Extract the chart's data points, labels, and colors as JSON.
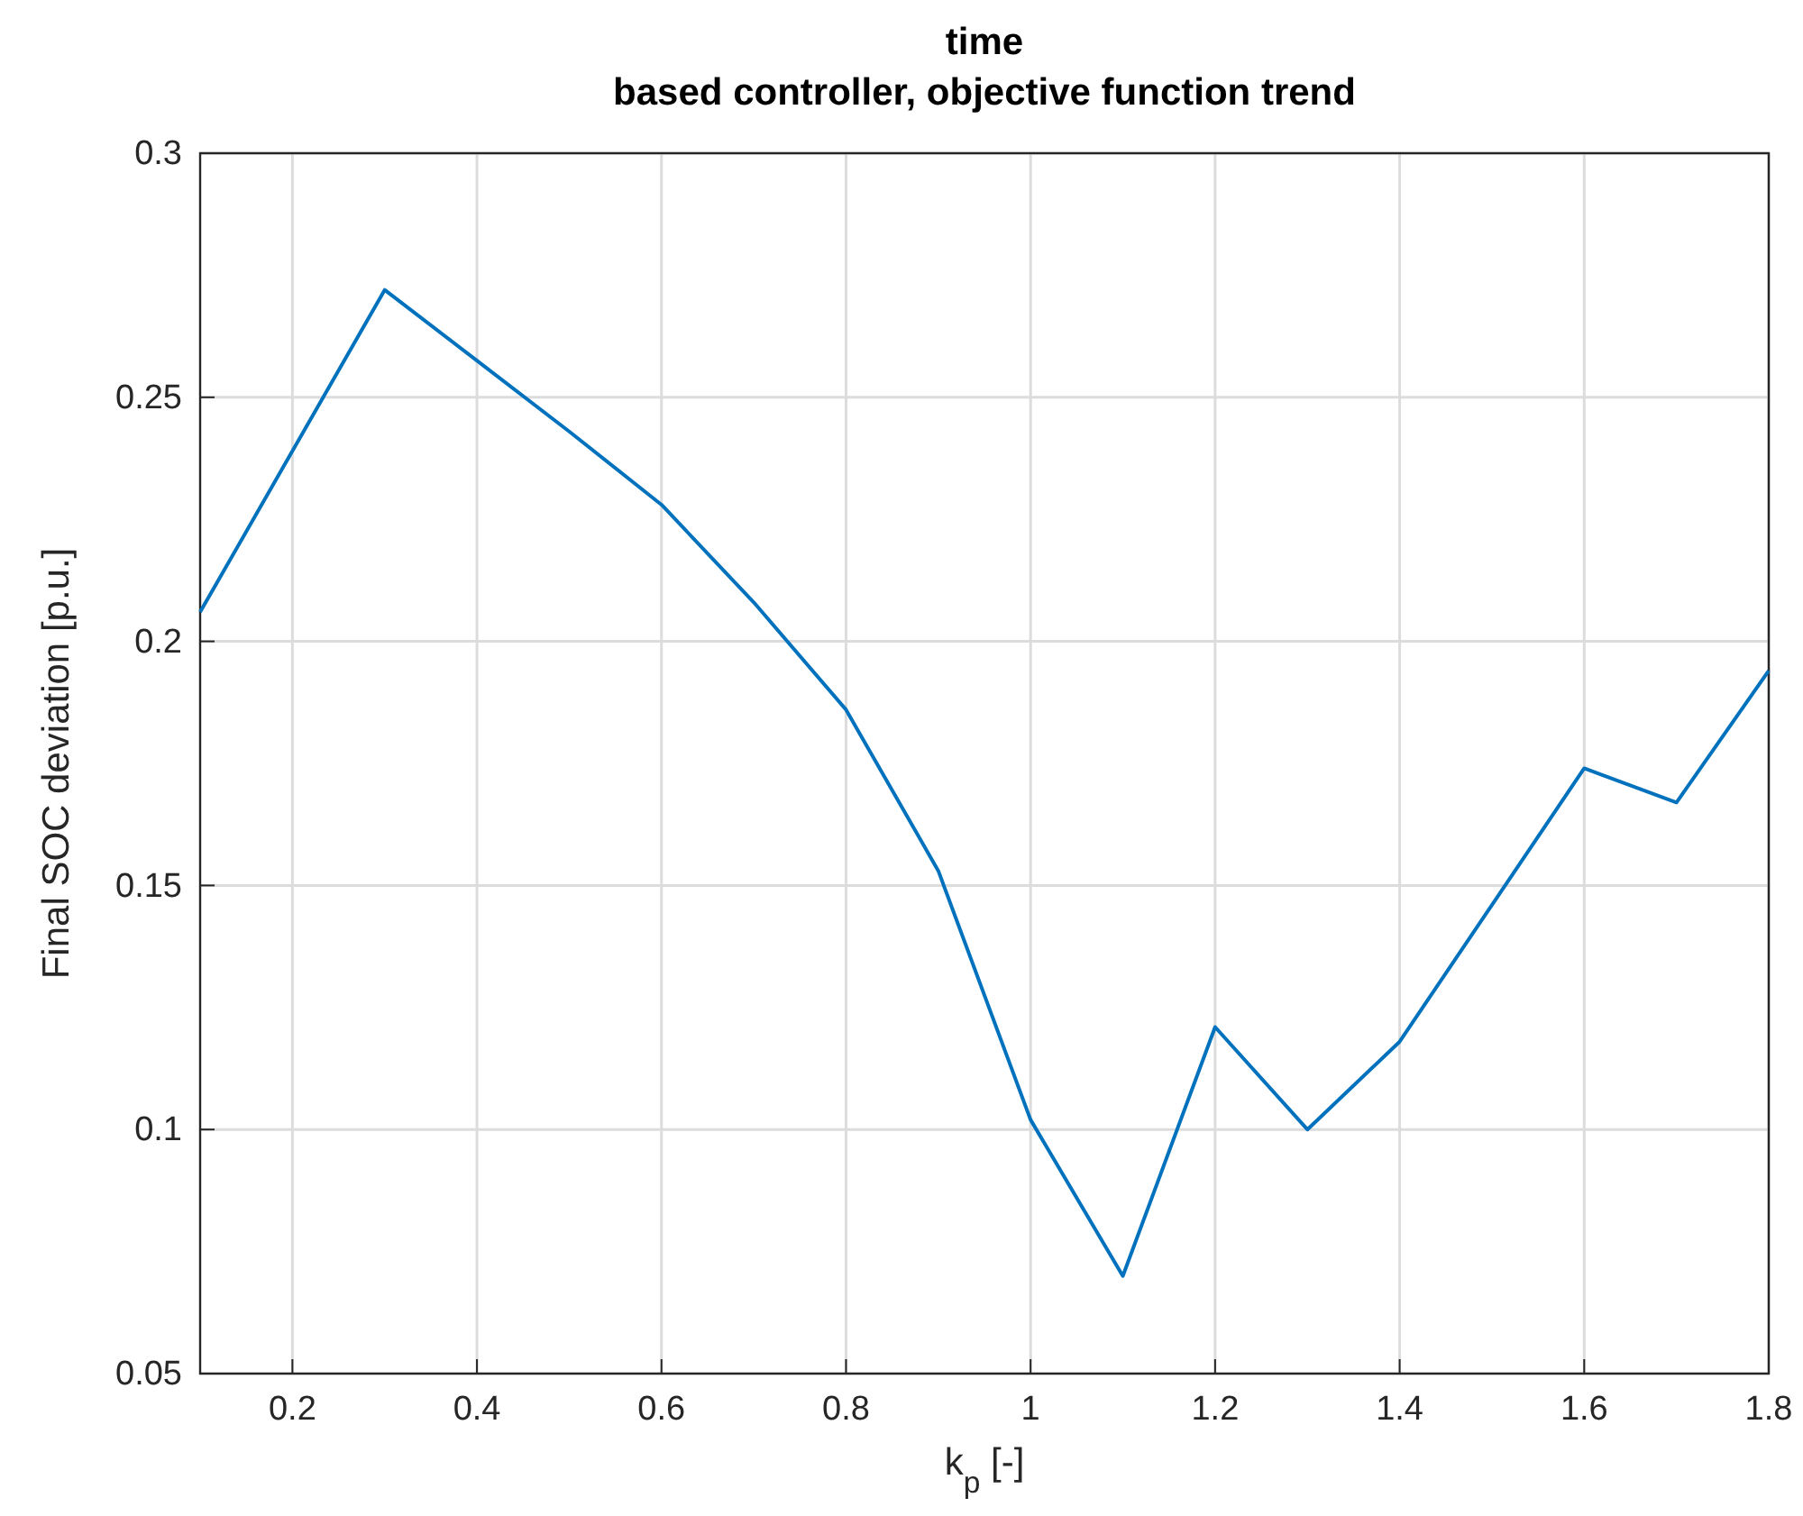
{
  "chart_data": {
    "type": "line",
    "title": "time\nbased controller, objective function trend",
    "xlabel": "k$_{p}$  [-]",
    "ylabel": "Final SOC deviation [p.u.]",
    "x": [
      0.1,
      0.3,
      0.4,
      0.5,
      0.6,
      0.7,
      0.8,
      0.9,
      1.0,
      1.1,
      1.2,
      1.3,
      1.4,
      1.5,
      1.6,
      1.7,
      1.8
    ],
    "series": [
      {
        "color": "#0072bd",
        "values": [
          0.206,
          0.272,
          0.2575,
          0.243,
          0.228,
          0.208,
          0.186,
          0.153,
          0.102,
          0.07,
          0.121,
          0.1,
          0.118,
          0.146,
          0.174,
          0.167,
          0.194
        ]
      }
    ],
    "xlim": [
      0.1,
      1.8
    ],
    "xticks": [
      0.2,
      0.4,
      0.6,
      0.8,
      1,
      1.2,
      1.4,
      1.6,
      1.8
    ],
    "ylim": [
      0.05,
      0.3
    ],
    "yticks": [
      0.05,
      0.1,
      0.15,
      0.2,
      0.25,
      0.3
    ],
    "grid": true,
    "line_style": "solid"
  }
}
